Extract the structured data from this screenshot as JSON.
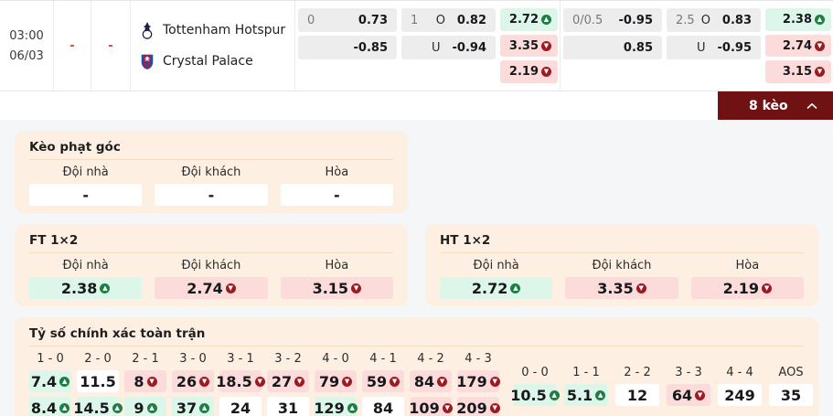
{
  "match": {
    "time": "03:00",
    "date": "06/03",
    "home_score": "-",
    "away_score": "-",
    "home_team": "Tottenham Hotspur",
    "away_team": "Crystal Palace"
  },
  "top_odds": {
    "first_half": {
      "handicap": {
        "line": "0",
        "home": "0.73",
        "away": "-0.85"
      },
      "ou": {
        "line": "1",
        "over_label": "O",
        "over": "0.82",
        "under_label": "U",
        "under": "-0.94"
      },
      "x12": [
        {
          "value": "2.72",
          "trend": "up"
        },
        {
          "value": "3.35",
          "trend": "down"
        },
        {
          "value": "2.19",
          "trend": "down"
        }
      ]
    },
    "full_time": {
      "handicap": {
        "line": "0/0.5",
        "home": "-0.95",
        "away": "0.85"
      },
      "ou": {
        "line": "2.5",
        "over_label": "O",
        "over": "0.83",
        "under_label": "U",
        "under": "-0.95"
      },
      "x12": [
        {
          "value": "2.38",
          "trend": "up"
        },
        {
          "value": "2.74",
          "trend": "down"
        },
        {
          "value": "3.15",
          "trend": "down"
        }
      ]
    }
  },
  "keo_bar": {
    "label": "8 kèo"
  },
  "corner": {
    "title": "Kèo phạt góc",
    "headers": [
      "Đội nhà",
      "Đội khách",
      "Hòa"
    ],
    "cells": [
      {
        "value": "-"
      },
      {
        "value": "-"
      },
      {
        "value": "-"
      }
    ]
  },
  "ft": {
    "title": "FT 1×2",
    "headers": [
      "Đội nhà",
      "Đội khách",
      "Hòa"
    ],
    "cells": [
      {
        "value": "2.38",
        "trend": "up"
      },
      {
        "value": "2.74",
        "trend": "down"
      },
      {
        "value": "3.15",
        "trend": "down"
      }
    ]
  },
  "ht": {
    "title": "HT 1×2",
    "headers": [
      "Đội nhà",
      "Đội khách",
      "Hòa"
    ],
    "cells": [
      {
        "value": "2.72",
        "trend": "up"
      },
      {
        "value": "3.35",
        "trend": "down"
      },
      {
        "value": "2.19",
        "trend": "down"
      }
    ]
  },
  "exact": {
    "title": "Tỷ số chính xác toàn trận",
    "win_columns": [
      {
        "score": "1 - 0",
        "row1": {
          "value": "7.4",
          "trend": "up"
        },
        "row2": {
          "value": "8.4",
          "trend": "up"
        }
      },
      {
        "score": "2 - 0",
        "row1": {
          "value": "11.5"
        },
        "row2": {
          "value": "14.5",
          "trend": "up"
        }
      },
      {
        "score": "2 - 1",
        "row1": {
          "value": "8",
          "trend": "down"
        },
        "row2": {
          "value": "9",
          "trend": "up"
        }
      },
      {
        "score": "3 - 0",
        "row1": {
          "value": "26",
          "trend": "down"
        },
        "row2": {
          "value": "37",
          "trend": "up"
        }
      },
      {
        "score": "3 - 1",
        "row1": {
          "value": "18.5",
          "trend": "down"
        },
        "row2": {
          "value": "24"
        }
      },
      {
        "score": "3 - 2",
        "row1": {
          "value": "27",
          "trend": "down"
        },
        "row2": {
          "value": "31"
        }
      },
      {
        "score": "4 - 0",
        "row1": {
          "value": "79",
          "trend": "down"
        },
        "row2": {
          "value": "129",
          "trend": "up"
        }
      },
      {
        "score": "4 - 1",
        "row1": {
          "value": "59",
          "trend": "down"
        },
        "row2": {
          "value": "84"
        }
      },
      {
        "score": "4 - 2",
        "row1": {
          "value": "84",
          "trend": "down"
        },
        "row2": {
          "value": "109",
          "trend": "down"
        }
      },
      {
        "score": "4 - 3",
        "row1": {
          "value": "179",
          "trend": "down"
        },
        "row2": {
          "value": "209",
          "trend": "down"
        }
      }
    ],
    "draw_columns": [
      {
        "score": "0 - 0",
        "cell": {
          "value": "10.5",
          "trend": "up"
        }
      },
      {
        "score": "1 - 1",
        "cell": {
          "value": "5.1",
          "trend": "up"
        }
      },
      {
        "score": "2 - 2",
        "cell": {
          "value": "12"
        }
      },
      {
        "score": "3 - 3",
        "cell": {
          "value": "64",
          "trend": "down"
        }
      },
      {
        "score": "4 - 4",
        "cell": {
          "value": "249"
        }
      },
      {
        "score": "AOS",
        "cell": {
          "value": "35"
        }
      }
    ]
  },
  "icons": {
    "up_arrow": "▲",
    "down_arrow": "▼",
    "chevron_up": "^"
  },
  "colors": {
    "accent_maroon": "#701113",
    "up_green_bg": "#dcf7ea",
    "down_red_bg": "#fbdcda",
    "up_arrow": "#1d7f45",
    "down_arrow": "#9c1b22",
    "card_peach": "#fdf0e3",
    "score_dash_red": "#e8432e"
  }
}
